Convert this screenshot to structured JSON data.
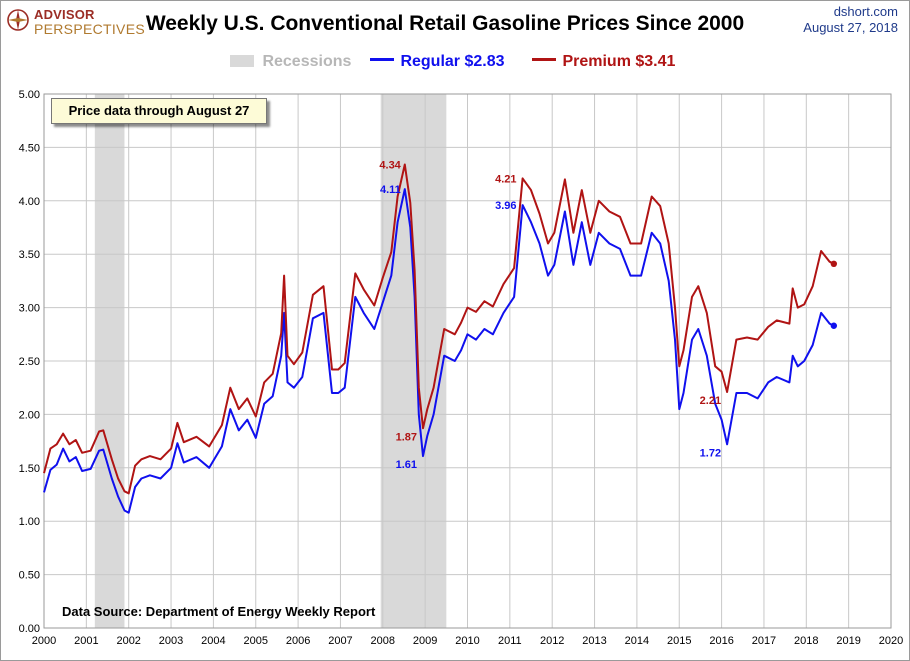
{
  "brand": {
    "line1": "ADVISOR",
    "line2": "PERSPECTIVES"
  },
  "source": {
    "site": "dshort.com",
    "date": "August  27, 2018"
  },
  "note": "Price data through August 27",
  "data_source": "Data Source: Department of Energy Weekly Report",
  "colors": {
    "regular": "#1010ee",
    "premium": "#b01414",
    "recession": "#d9d9d9",
    "grid": "#c8c8c8",
    "ann_regular": "#1010ee",
    "ann_premium": "#b01414"
  },
  "chart_data": {
    "type": "line",
    "title": "Weekly U.S. Conventional Retail Gasoline Prices Since 2000",
    "xlabel": "",
    "ylabel": "",
    "xlim": [
      2000,
      2020
    ],
    "ylim": [
      0,
      5
    ],
    "grid": true,
    "legend_position": "top-center",
    "legend": [
      {
        "label": "Recessions",
        "kind": "band"
      },
      {
        "label": "Regular  $2.83",
        "kind": "line",
        "series": "regular"
      },
      {
        "label": "Premium  $3.41",
        "kind": "line",
        "series": "premium"
      }
    ],
    "x_ticks": [
      "2000",
      "2001",
      "2002",
      "2003",
      "2004",
      "2005",
      "2006",
      "2007",
      "2008",
      "2009",
      "2010",
      "2011",
      "2012",
      "2013",
      "2014",
      "2015",
      "2016",
      "2017",
      "2018",
      "2019",
      "2020"
    ],
    "y_ticks": [
      "0.00",
      "0.50",
      "1.00",
      "1.50",
      "2.00",
      "2.50",
      "3.00",
      "3.50",
      "4.00",
      "4.50",
      "5.00"
    ],
    "recessions": [
      [
        2001.2,
        2001.9
      ],
      [
        2007.95,
        2009.5
      ]
    ],
    "series": [
      {
        "name": "Regular",
        "color": "#1010ee",
        "x": [
          2000.0,
          2000.15,
          2000.3,
          2000.45,
          2000.6,
          2000.75,
          2000.9,
          2001.1,
          2001.3,
          2001.4,
          2001.6,
          2001.75,
          2001.9,
          2002.0,
          2002.15,
          2002.3,
          2002.5,
          2002.75,
          2003.0,
          2003.15,
          2003.3,
          2003.6,
          2003.9,
          2004.2,
          2004.4,
          2004.6,
          2004.8,
          2005.0,
          2005.2,
          2005.4,
          2005.6,
          2005.67,
          2005.75,
          2005.9,
          2006.1,
          2006.35,
          2006.6,
          2006.8,
          2006.95,
          2007.1,
          2007.35,
          2007.55,
          2007.8,
          2008.0,
          2008.2,
          2008.35,
          2008.52,
          2008.65,
          2008.75,
          2008.85,
          2008.95,
          2009.05,
          2009.2,
          2009.45,
          2009.7,
          2009.85,
          2010.0,
          2010.2,
          2010.4,
          2010.6,
          2010.85,
          2011.1,
          2011.3,
          2011.5,
          2011.7,
          2011.9,
          2012.05,
          2012.3,
          2012.5,
          2012.7,
          2012.9,
          2013.1,
          2013.35,
          2013.6,
          2013.85,
          2014.1,
          2014.35,
          2014.55,
          2014.75,
          2014.9,
          2015.0,
          2015.1,
          2015.3,
          2015.45,
          2015.65,
          2015.85,
          2016.0,
          2016.13,
          2016.35,
          2016.6,
          2016.85,
          2017.1,
          2017.3,
          2017.6,
          2017.68,
          2017.8,
          2017.95,
          2018.15,
          2018.35,
          2018.55,
          2018.65
        ],
        "y": [
          1.27,
          1.48,
          1.53,
          1.68,
          1.56,
          1.6,
          1.47,
          1.49,
          1.66,
          1.67,
          1.4,
          1.23,
          1.1,
          1.08,
          1.32,
          1.4,
          1.43,
          1.4,
          1.5,
          1.73,
          1.55,
          1.6,
          1.5,
          1.7,
          2.05,
          1.85,
          1.95,
          1.78,
          2.1,
          2.17,
          2.55,
          2.95,
          2.3,
          2.25,
          2.35,
          2.9,
          2.95,
          2.2,
          2.2,
          2.25,
          3.1,
          2.95,
          2.8,
          3.05,
          3.3,
          3.8,
          4.11,
          3.75,
          3.1,
          2.0,
          1.61,
          1.8,
          2.0,
          2.55,
          2.5,
          2.6,
          2.75,
          2.7,
          2.8,
          2.75,
          2.95,
          3.1,
          3.96,
          3.8,
          3.6,
          3.3,
          3.4,
          3.9,
          3.4,
          3.8,
          3.4,
          3.7,
          3.6,
          3.55,
          3.3,
          3.3,
          3.7,
          3.6,
          3.25,
          2.7,
          2.05,
          2.2,
          2.7,
          2.8,
          2.55,
          2.1,
          1.95,
          1.72,
          2.2,
          2.2,
          2.15,
          2.3,
          2.35,
          2.3,
          2.55,
          2.45,
          2.5,
          2.65,
          2.95,
          2.85,
          2.83
        ]
      },
      {
        "name": "Premium",
        "color": "#b01414",
        "x": [
          2000.0,
          2000.15,
          2000.3,
          2000.45,
          2000.6,
          2000.75,
          2000.9,
          2001.1,
          2001.3,
          2001.4,
          2001.6,
          2001.75,
          2001.9,
          2002.0,
          2002.15,
          2002.3,
          2002.5,
          2002.75,
          2003.0,
          2003.15,
          2003.3,
          2003.6,
          2003.9,
          2004.2,
          2004.4,
          2004.6,
          2004.8,
          2005.0,
          2005.2,
          2005.4,
          2005.6,
          2005.67,
          2005.75,
          2005.9,
          2006.1,
          2006.35,
          2006.6,
          2006.8,
          2006.95,
          2007.1,
          2007.35,
          2007.55,
          2007.8,
          2008.0,
          2008.2,
          2008.35,
          2008.52,
          2008.65,
          2008.75,
          2008.85,
          2008.95,
          2009.05,
          2009.2,
          2009.45,
          2009.7,
          2009.85,
          2010.0,
          2010.2,
          2010.4,
          2010.6,
          2010.85,
          2011.1,
          2011.3,
          2011.5,
          2011.7,
          2011.9,
          2012.05,
          2012.3,
          2012.5,
          2012.7,
          2012.9,
          2013.1,
          2013.35,
          2013.6,
          2013.85,
          2014.1,
          2014.35,
          2014.55,
          2014.75,
          2014.9,
          2015.0,
          2015.1,
          2015.3,
          2015.45,
          2015.65,
          2015.85,
          2016.0,
          2016.13,
          2016.35,
          2016.6,
          2016.85,
          2017.1,
          2017.3,
          2017.6,
          2017.68,
          2017.8,
          2017.95,
          2018.15,
          2018.35,
          2018.55,
          2018.65
        ],
        "y": [
          1.45,
          1.68,
          1.72,
          1.82,
          1.72,
          1.76,
          1.64,
          1.66,
          1.84,
          1.85,
          1.58,
          1.4,
          1.28,
          1.26,
          1.52,
          1.58,
          1.61,
          1.58,
          1.68,
          1.92,
          1.74,
          1.79,
          1.7,
          1.9,
          2.25,
          2.05,
          2.15,
          1.98,
          2.3,
          2.38,
          2.76,
          3.3,
          2.55,
          2.47,
          2.58,
          3.12,
          3.2,
          2.42,
          2.42,
          2.48,
          3.32,
          3.17,
          3.02,
          3.28,
          3.52,
          4.04,
          4.34,
          3.98,
          3.35,
          2.25,
          1.87,
          2.05,
          2.25,
          2.8,
          2.75,
          2.86,
          3.0,
          2.96,
          3.06,
          3.01,
          3.22,
          3.37,
          4.21,
          4.1,
          3.88,
          3.6,
          3.7,
          4.2,
          3.7,
          4.1,
          3.7,
          4.0,
          3.9,
          3.85,
          3.6,
          3.6,
          4.04,
          3.95,
          3.6,
          3.0,
          2.45,
          2.6,
          3.1,
          3.2,
          2.95,
          2.45,
          2.4,
          2.21,
          2.7,
          2.72,
          2.7,
          2.82,
          2.88,
          2.85,
          3.18,
          3.0,
          3.03,
          3.2,
          3.53,
          3.43,
          3.41
        ]
      }
    ],
    "annotations": [
      {
        "text": "4.34",
        "x": 2008.52,
        "y": 4.34,
        "series": "premium"
      },
      {
        "text": "4.11",
        "x": 2008.52,
        "y": 4.11,
        "series": "regular"
      },
      {
        "text": "1.87",
        "x": 2008.95,
        "y": 1.87,
        "series": "premium"
      },
      {
        "text": "1.61",
        "x": 2008.95,
        "y": 1.61,
        "series": "regular"
      },
      {
        "text": "4.21",
        "x": 2011.3,
        "y": 4.21,
        "series": "premium"
      },
      {
        "text": "3.96",
        "x": 2011.3,
        "y": 3.96,
        "series": "regular"
      },
      {
        "text": "2.21",
        "x": 2016.13,
        "y": 2.21,
        "series": "premium"
      },
      {
        "text": "1.72",
        "x": 2016.13,
        "y": 1.72,
        "series": "regular"
      }
    ]
  }
}
